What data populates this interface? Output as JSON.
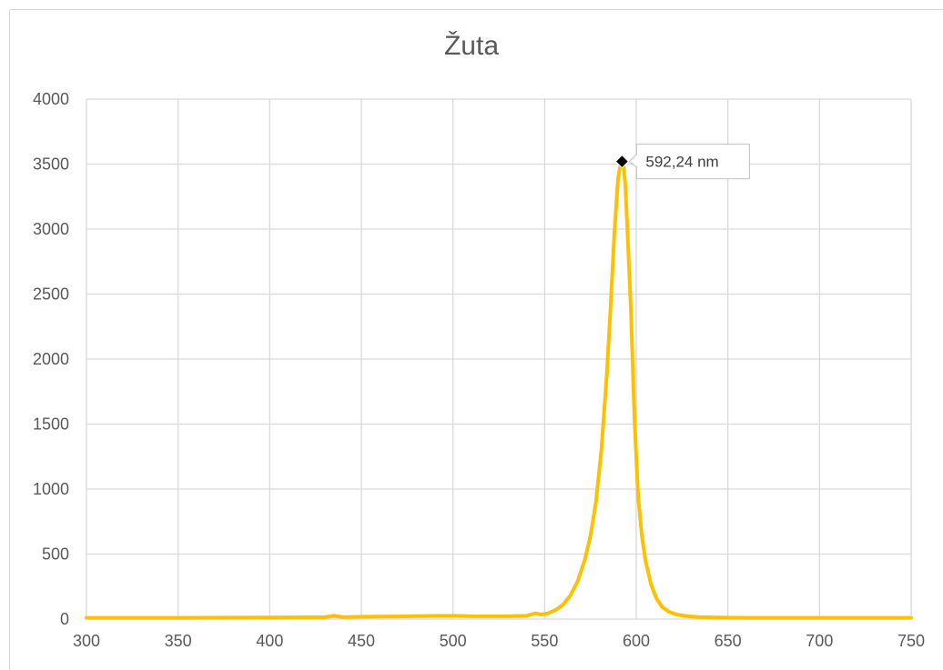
{
  "chart_data": {
    "type": "line",
    "title": "Žuta",
    "xlabel": "",
    "ylabel": "",
    "xlim": [
      300,
      750
    ],
    "ylim": [
      0,
      4000
    ],
    "x_ticks": [
      "300",
      "350",
      "400",
      "450",
      "500",
      "550",
      "600",
      "650",
      "700",
      "750"
    ],
    "y_ticks": [
      "0",
      "500",
      "1000",
      "1500",
      "2000",
      "2500",
      "3000",
      "3500",
      "4000"
    ],
    "grid": true,
    "legend": "none",
    "series": [
      {
        "color": "#FFC000",
        "x": [
          300,
          350,
          400,
          430,
          435,
          440,
          450,
          470,
          490,
          500,
          510,
          520,
          530,
          540,
          545,
          548,
          552,
          556,
          560,
          564,
          568,
          572,
          575,
          578,
          581,
          584,
          586,
          588,
          590,
          591,
          592.24,
          593,
          594,
          595,
          597,
          599,
          601,
          603,
          605,
          608,
          611,
          614,
          618,
          622,
          628,
          635,
          645,
          660,
          700,
          750
        ],
        "y": [
          10,
          10,
          12,
          15,
          25,
          15,
          18,
          20,
          25,
          25,
          22,
          22,
          22,
          25,
          45,
          35,
          45,
          70,
          110,
          180,
          290,
          460,
          640,
          900,
          1300,
          1900,
          2400,
          2950,
          3380,
          3470,
          3520,
          3480,
          3350,
          3050,
          2400,
          1550,
          950,
          650,
          450,
          270,
          160,
          95,
          55,
          35,
          22,
          15,
          12,
          10,
          10,
          10
        ]
      }
    ],
    "annotations": [
      {
        "text": "592,24 nm",
        "x": 592.24,
        "y": 3520
      }
    ]
  }
}
